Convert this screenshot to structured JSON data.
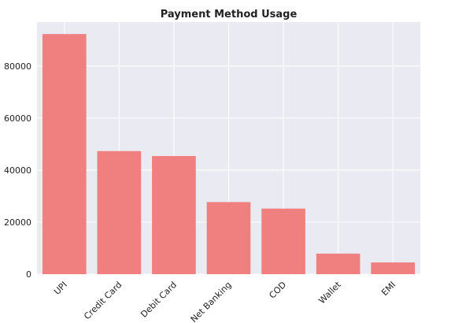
{
  "chart_data": {
    "type": "bar",
    "title": "Payment Method Usage",
    "xlabel": "",
    "ylabel": "",
    "categories": [
      "UPI",
      "Credit Card",
      "Debit Card",
      "Net Banking",
      "COD",
      "Wallet",
      "EMI"
    ],
    "values": [
      92300,
      47300,
      45400,
      27700,
      25200,
      7900,
      4500
    ],
    "ylim": [
      0,
      96900
    ],
    "yticks": [
      "0",
      "20000",
      "40000",
      "60000",
      "80000"
    ],
    "ytick_values": [
      0,
      20000,
      40000,
      60000,
      80000
    ],
    "grid": true,
    "colors": {
      "bar": "#f08080",
      "plot_background": "#eaeaf2",
      "grid": "#ffffff"
    }
  }
}
